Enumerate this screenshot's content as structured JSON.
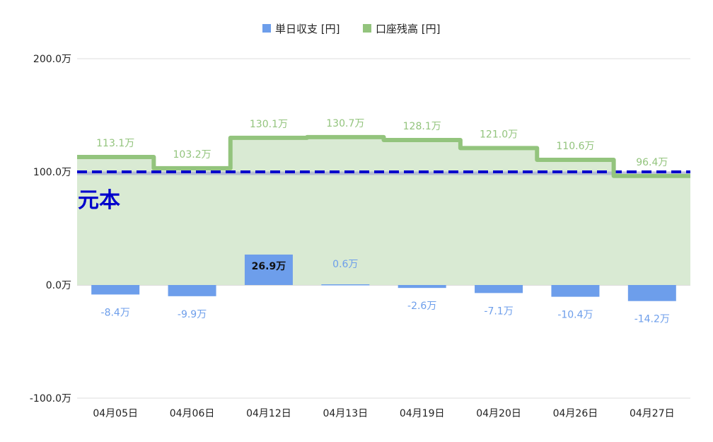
{
  "chart_data": {
    "type": "bar",
    "categories": [
      "04月05日",
      "04月06日",
      "04月12日",
      "04月13日",
      "04月19日",
      "04月20日",
      "04月26日",
      "04月27日"
    ],
    "series": [
      {
        "name": "単日収支 [円]",
        "kind": "bar",
        "color": "#6d9eeb",
        "values": [
          -8.4,
          -9.9,
          26.9,
          0.6,
          -2.6,
          -7.1,
          -10.4,
          -14.2
        ],
        "labels": [
          "-8.4万",
          "-9.9万",
          "26.9万",
          "0.6万",
          "-2.6万",
          "-7.1万",
          "-10.4万",
          "-14.2万"
        ]
      },
      {
        "name": "口座残高 [円]",
        "kind": "stepped-area",
        "color": "#93c47d",
        "fill": "#d9ead3",
        "values": [
          113.1,
          103.2,
          130.1,
          130.7,
          128.1,
          121.0,
          110.6,
          96.4
        ],
        "labels": [
          "113.1万",
          "103.2万",
          "130.1万",
          "130.7万",
          "128.1万",
          "121.0万",
          "110.6万",
          "96.4万"
        ]
      }
    ],
    "ylim": [
      -100,
      200
    ],
    "yticks": [
      -100,
      0,
      100,
      200
    ],
    "ytick_labels": [
      "-100.0万",
      "0.0万",
      "100.0万",
      "200.0万"
    ],
    "reference_line": {
      "value": 100,
      "label": "元本",
      "color": "#0000cc",
      "style": "dashed"
    },
    "legend": {
      "position": "top"
    },
    "grid": true
  }
}
